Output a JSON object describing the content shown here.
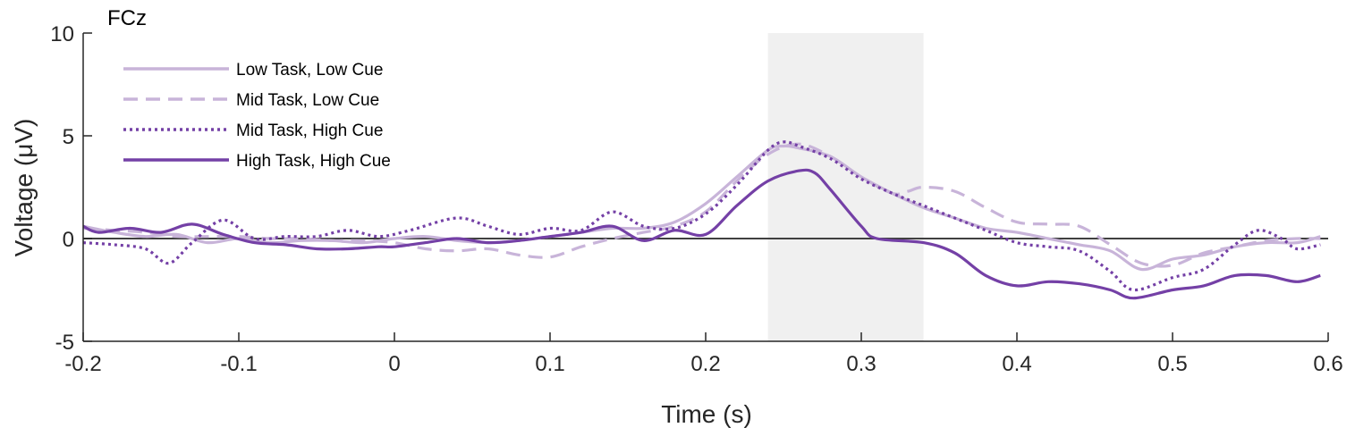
{
  "chart_data": {
    "type": "line",
    "title": "FCz",
    "xlabel": "Time (s)",
    "ylabel": "Voltage (μV)",
    "xlim": [
      -0.2,
      0.6
    ],
    "ylim": [
      -5,
      10
    ],
    "xticks": [
      -0.2,
      -0.1,
      0,
      0.1,
      0.2,
      0.3,
      0.4,
      0.5,
      0.6
    ],
    "xtick_labels": [
      "-0.2",
      "-0.1",
      "0",
      "0.1",
      "0.2",
      "0.3",
      "0.4",
      "0.5",
      "0.6"
    ],
    "yticks": [
      -5,
      0,
      5,
      10
    ],
    "ytick_labels": [
      "-5",
      "0",
      "5",
      "10"
    ],
    "grid": false,
    "legend_position": "top-left",
    "zero_line": true,
    "shaded_window": {
      "start": 0.24,
      "end": 0.34,
      "color": "#f0f0f0"
    },
    "series": [
      {
        "name": "Low Task, Low Cue",
        "color": "#c8b4d9",
        "dash": "solid",
        "x": [
          -0.2,
          -0.18,
          -0.16,
          -0.14,
          -0.12,
          -0.1,
          -0.08,
          -0.06,
          -0.04,
          -0.02,
          0,
          0.02,
          0.04,
          0.06,
          0.08,
          0.1,
          0.12,
          0.14,
          0.16,
          0.18,
          0.2,
          0.22,
          0.24,
          0.25,
          0.26,
          0.28,
          0.3,
          0.32,
          0.34,
          0.36,
          0.38,
          0.4,
          0.42,
          0.44,
          0.46,
          0.48,
          0.5,
          0.52,
          0.54,
          0.56,
          0.58,
          0.595
        ],
        "y": [
          0.6,
          0.3,
          0.1,
          0.2,
          -0.2,
          0.0,
          -0.2,
          -0.1,
          -0.1,
          -0.2,
          0.0,
          0.1,
          -0.1,
          -0.2,
          -0.1,
          0.1,
          0.3,
          0.5,
          0.5,
          0.8,
          1.7,
          3.0,
          4.3,
          4.5,
          4.4,
          4.0,
          3.0,
          2.2,
          1.5,
          1.0,
          0.5,
          0.3,
          0.0,
          -0.3,
          -0.6,
          -1.5,
          -1.0,
          -0.8,
          -0.4,
          -0.2,
          -0.2,
          0.1
        ]
      },
      {
        "name": "Mid Task, Low Cue",
        "color": "#c8b4d9",
        "dash": "dashed",
        "x": [
          -0.2,
          -0.18,
          -0.16,
          -0.14,
          -0.12,
          -0.1,
          -0.08,
          -0.06,
          -0.04,
          -0.02,
          0,
          0.02,
          0.04,
          0.06,
          0.08,
          0.1,
          0.12,
          0.14,
          0.16,
          0.18,
          0.2,
          0.22,
          0.24,
          0.26,
          0.28,
          0.3,
          0.32,
          0.33,
          0.34,
          0.36,
          0.38,
          0.4,
          0.42,
          0.44,
          0.46,
          0.48,
          0.5,
          0.52,
          0.54,
          0.56,
          0.58,
          0.595
        ],
        "y": [
          0.5,
          0.4,
          0.3,
          0.1,
          0.1,
          0.1,
          0.0,
          0.0,
          -0.1,
          -0.1,
          -0.2,
          -0.5,
          -0.6,
          -0.5,
          -0.8,
          -0.9,
          -0.4,
          0.0,
          0.3,
          0.6,
          1.3,
          2.8,
          4.1,
          4.6,
          4.0,
          3.0,
          2.2,
          2.3,
          2.5,
          2.3,
          1.5,
          0.8,
          0.7,
          0.6,
          -0.3,
          -1.2,
          -1.3,
          -0.7,
          -0.4,
          -0.1,
          0.0,
          0.0
        ]
      },
      {
        "name": "Mid Task, High Cue",
        "color": "#7440a6",
        "dash": "dotted",
        "x": [
          -0.2,
          -0.18,
          -0.16,
          -0.145,
          -0.13,
          -0.11,
          -0.09,
          -0.07,
          -0.05,
          -0.03,
          -0.01,
          0.01,
          0.04,
          0.06,
          0.08,
          0.1,
          0.12,
          0.14,
          0.16,
          0.18,
          0.2,
          0.22,
          0.24,
          0.25,
          0.26,
          0.28,
          0.3,
          0.32,
          0.34,
          0.36,
          0.38,
          0.4,
          0.42,
          0.44,
          0.46,
          0.475,
          0.5,
          0.52,
          0.54,
          0.555,
          0.57,
          0.58,
          0.595
        ],
        "y": [
          -0.2,
          -0.3,
          -0.5,
          -1.2,
          -0.2,
          0.9,
          0.0,
          0.1,
          0.1,
          0.4,
          0.1,
          0.4,
          1.0,
          0.6,
          0.2,
          0.5,
          0.4,
          1.3,
          0.6,
          0.5,
          1.2,
          2.6,
          4.3,
          4.7,
          4.5,
          3.9,
          2.9,
          2.2,
          1.6,
          1.0,
          0.4,
          -0.2,
          -0.4,
          -0.6,
          -1.6,
          -2.5,
          -1.9,
          -1.5,
          -0.3,
          0.4,
          0.0,
          -0.5,
          -0.3
        ]
      },
      {
        "name": "High Task, High Cue",
        "color": "#7440a6",
        "dash": "solid",
        "x": [
          -0.2,
          -0.19,
          -0.17,
          -0.15,
          -0.13,
          -0.11,
          -0.09,
          -0.07,
          -0.05,
          -0.03,
          -0.01,
          0.0,
          0.02,
          0.04,
          0.06,
          0.08,
          0.1,
          0.12,
          0.14,
          0.16,
          0.18,
          0.2,
          0.22,
          0.24,
          0.26,
          0.27,
          0.28,
          0.3,
          0.31,
          0.34,
          0.36,
          0.38,
          0.4,
          0.42,
          0.44,
          0.46,
          0.475,
          0.5,
          0.52,
          0.54,
          0.56,
          0.58,
          0.595
        ],
        "y": [
          0.6,
          0.3,
          0.5,
          0.3,
          0.7,
          0.2,
          -0.2,
          -0.3,
          -0.5,
          -0.5,
          -0.4,
          -0.4,
          -0.2,
          0.0,
          -0.2,
          -0.1,
          0.1,
          0.3,
          0.6,
          -0.1,
          0.4,
          0.2,
          1.6,
          2.8,
          3.3,
          3.2,
          2.4,
          0.6,
          0.0,
          -0.2,
          -0.7,
          -1.8,
          -2.3,
          -2.1,
          -2.2,
          -2.5,
          -2.9,
          -2.5,
          -2.3,
          -1.8,
          -1.8,
          -2.1,
          -1.8
        ]
      }
    ]
  }
}
